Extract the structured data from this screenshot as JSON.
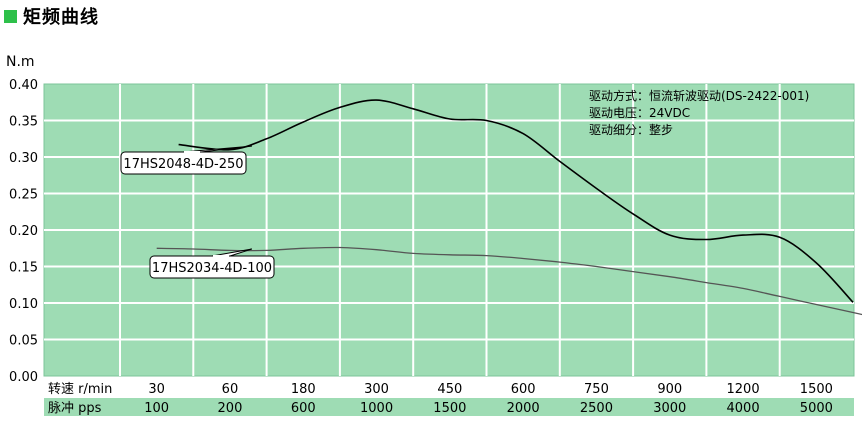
{
  "page": {
    "title": "矩频曲线",
    "accent": "#2ec04a"
  },
  "chart_data": {
    "type": "line",
    "title": "矩频曲线",
    "ylabel": "N.m",
    "ylim": [
      0.0,
      0.4
    ],
    "yticks": [
      "0.00",
      "0.05",
      "0.10",
      "0.15",
      "0.20",
      "0.25",
      "0.30",
      "0.35",
      "0.40"
    ],
    "x_rows": [
      {
        "label": "转速 r/min",
        "values": [
          "30",
          "60",
          "180",
          "300",
          "450",
          "600",
          "750",
          "900",
          "1200",
          "1500"
        ]
      },
      {
        "label": "脉冲 pps",
        "values": [
          "100",
          "200",
          "600",
          "1000",
          "1500",
          "2000",
          "2500",
          "3000",
          "4000",
          "5000"
        ]
      }
    ],
    "grid": true,
    "background": "#9edcb4",
    "notes": [
      "驱动方式：恒流斩波驱动(DS-2422-001)",
      "驱动电压：24VDC",
      "驱动细分：整步"
    ],
    "series": [
      {
        "name": "17HS2048-4D-250",
        "color": "#000000",
        "points": [
          [
            0.3,
            0.317
          ],
          [
            1.0,
            0.31
          ],
          [
            1.5,
            0.325
          ],
          [
            2.0,
            0.348
          ],
          [
            2.5,
            0.368
          ],
          [
            3.0,
            0.378
          ],
          [
            3.5,
            0.366
          ],
          [
            4.0,
            0.352
          ],
          [
            4.5,
            0.35
          ],
          [
            5.0,
            0.332
          ],
          [
            5.5,
            0.294
          ],
          [
            6.0,
            0.257
          ],
          [
            6.5,
            0.222
          ],
          [
            7.0,
            0.193
          ],
          [
            7.5,
            0.187
          ],
          [
            8.0,
            0.193
          ],
          [
            8.5,
            0.19
          ],
          [
            9.0,
            0.155
          ],
          [
            9.5,
            0.101
          ]
        ]
      },
      {
        "name": "17HS2034-4D-100",
        "color": "#555555",
        "points": [
          [
            0.0,
            0.175
          ],
          [
            0.5,
            0.174
          ],
          [
            1.0,
            0.172
          ],
          [
            1.5,
            0.172
          ],
          [
            2.0,
            0.175
          ],
          [
            2.5,
            0.176
          ],
          [
            3.0,
            0.173
          ],
          [
            3.5,
            0.168
          ],
          [
            4.0,
            0.166
          ],
          [
            4.5,
            0.165
          ],
          [
            5.0,
            0.161
          ],
          [
            5.5,
            0.156
          ],
          [
            6.0,
            0.15
          ],
          [
            6.5,
            0.143
          ],
          [
            7.0,
            0.136
          ],
          [
            7.5,
            0.128
          ],
          [
            8.0,
            0.12
          ],
          [
            8.5,
            0.109
          ],
          [
            9.0,
            0.098
          ],
          [
            9.5,
            0.087
          ],
          [
            10.0,
            0.076
          ]
        ]
      }
    ]
  }
}
